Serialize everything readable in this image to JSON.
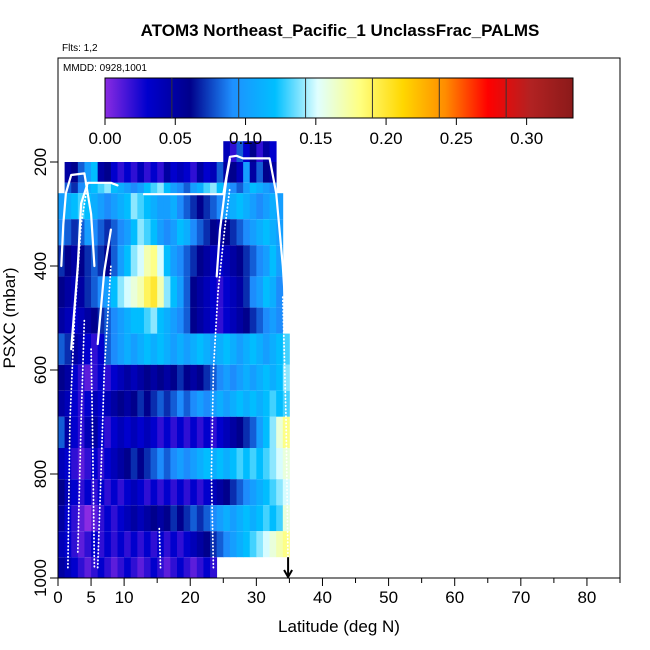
{
  "chart_data": {
    "type": "heatmap",
    "title": "ATOM3 Northeast_Pacific_1 UnclassFrac_PALMS",
    "flights_label": "Flts: 1,2",
    "date_label": "MMDD: 0928,1001",
    "xlabel": "Latitude (deg N)",
    "ylabel": "PSXC (mbar)",
    "xlim": [
      0,
      85
    ],
    "ylim": [
      1000,
      0
    ],
    "x_ticks": [
      0,
      5,
      10,
      20,
      30,
      40,
      50,
      60,
      70,
      80
    ],
    "y_ticks": [
      200,
      400,
      600,
      800,
      1000
    ],
    "colorbar": {
      "min": 0.0,
      "max": 0.333,
      "tick_values": [
        0.0,
        0.05,
        0.1,
        0.15,
        0.2,
        0.25,
        0.3
      ],
      "tick_labels": [
        "0.00",
        "0.05",
        "0.10",
        "0.15",
        "0.20",
        "0.25",
        "0.30"
      ],
      "colors": [
        "#8a2be2",
        "#0000cd",
        "#00008b",
        "#1e90ff",
        "#00bfff",
        "#e0ffff",
        "#ffff80",
        "#ffd700",
        "#ff8c00",
        "#ff0000",
        "#b22222",
        "#8b1a1a"
      ]
    },
    "layers": [
      {
        "p_top": 160,
        "p_bot": 200,
        "lat_start": 25,
        "lat_end": 33,
        "values": [
          0.04,
          0.02,
          0.08,
          0.03,
          0.06,
          0.02,
          0.05,
          0.03
        ]
      },
      {
        "p_top": 200,
        "p_bot": 240,
        "lat_start": 1,
        "lat_end": 33,
        "values": [
          0.05,
          0.06,
          0.08,
          0.1,
          0.12,
          0.05,
          0.06,
          0.03,
          0.02,
          0.03,
          0.02,
          0.04,
          0.02,
          0.03,
          0.02,
          0.05,
          0.03,
          0.04,
          0.03,
          0.02,
          0.05,
          0.03,
          0.04,
          0.08,
          0.05,
          0.06,
          0.04,
          0.1,
          0.05,
          0.08,
          0.06,
          0.05
        ]
      },
      {
        "p_top": 240,
        "p_bot": 260,
        "lat_start": 1,
        "lat_end": 33,
        "values": [
          0.08,
          0.07,
          0.09,
          0.11,
          0.12,
          0.13,
          0.14,
          0.12,
          0.11,
          0.1,
          0.09,
          0.1,
          0.12,
          0.13,
          0.14,
          0.12,
          0.1,
          0.09,
          0.08,
          0.1,
          0.11,
          0.13,
          0.14,
          0.12,
          0.1,
          0.09,
          0.08,
          0.1,
          0.12,
          0.11,
          0.1,
          0.09
        ]
      },
      {
        "p_top": 260,
        "p_bot": 310,
        "lat_start": 0,
        "lat_end": 34,
        "values": [
          0.1,
          0.11,
          0.12,
          0.13,
          0.12,
          0.11,
          0.1,
          0.09,
          0.1,
          0.11,
          0.12,
          0.14,
          0.13,
          0.12,
          0.11,
          0.1,
          0.1,
          0.11,
          0.09,
          0.08,
          0.07,
          0.06,
          0.07,
          0.08,
          0.09,
          0.1,
          0.11,
          0.12,
          0.11,
          0.1,
          0.09,
          0.1,
          0.11,
          0.1
        ]
      },
      {
        "p_top": 310,
        "p_bot": 360,
        "lat_start": 0,
        "lat_end": 34,
        "values": [
          0.09,
          0.08,
          0.07,
          0.08,
          0.1,
          0.09,
          0.08,
          0.07,
          0.08,
          0.09,
          0.1,
          0.12,
          0.14,
          0.13,
          0.12,
          0.1,
          0.09,
          0.1,
          0.12,
          0.11,
          0.09,
          0.08,
          0.07,
          0.06,
          0.05,
          0.06,
          0.07,
          0.08,
          0.09,
          0.1,
          0.11,
          0.12,
          0.11,
          0.1
        ]
      },
      {
        "p_top": 360,
        "p_bot": 420,
        "lat_start": 0,
        "lat_end": 34,
        "values": [
          0.07,
          0.06,
          0.05,
          0.06,
          0.07,
          0.08,
          0.07,
          0.06,
          0.08,
          0.1,
          0.12,
          0.14,
          0.15,
          0.17,
          0.18,
          0.15,
          0.12,
          0.1,
          0.09,
          0.08,
          0.07,
          0.06,
          0.05,
          0.04,
          0.03,
          0.04,
          0.05,
          0.06,
          0.07,
          0.08,
          0.09,
          0.1,
          0.12,
          0.1
        ]
      },
      {
        "p_top": 420,
        "p_bot": 480,
        "lat_start": 0,
        "lat_end": 34,
        "values": [
          0.06,
          0.05,
          0.04,
          0.05,
          0.07,
          0.08,
          0.09,
          0.1,
          0.12,
          0.14,
          0.15,
          0.16,
          0.17,
          0.19,
          0.2,
          0.17,
          0.14,
          0.12,
          0.1,
          0.08,
          0.06,
          0.05,
          0.04,
          0.03,
          0.02,
          0.03,
          0.04,
          0.05,
          0.07,
          0.09,
          0.1,
          0.12,
          0.11,
          0.09
        ]
      },
      {
        "p_top": 480,
        "p_bot": 530,
        "lat_start": 0,
        "lat_end": 34,
        "values": [
          0.05,
          0.04,
          0.03,
          0.04,
          0.05,
          0.06,
          0.07,
          0.08,
          0.09,
          0.1,
          0.11,
          0.12,
          0.12,
          0.13,
          0.14,
          0.12,
          0.11,
          0.1,
          0.09,
          0.08,
          0.06,
          0.05,
          0.04,
          0.03,
          0.02,
          0.03,
          0.04,
          0.05,
          0.06,
          0.07,
          0.08,
          0.09,
          0.1,
          0.09
        ]
      },
      {
        "p_top": 530,
        "p_bot": 590,
        "lat_start": 0,
        "lat_end": 35,
        "values": [
          0.08,
          0.07,
          0.05,
          0.04,
          0.03,
          0.02,
          0.03,
          0.08,
          0.09,
          0.1,
          0.11,
          0.1,
          0.11,
          0.12,
          0.11,
          0.12,
          0.11,
          0.1,
          0.11,
          0.1,
          0.11,
          0.12,
          0.11,
          0.1,
          0.11,
          0.12,
          0.11,
          0.1,
          0.11,
          0.12,
          0.11,
          0.1,
          0.11,
          0.12,
          0.13
        ]
      },
      {
        "p_top": 590,
        "p_bot": 640,
        "lat_start": 0,
        "lat_end": 35,
        "values": [
          0.06,
          0.05,
          0.03,
          0.02,
          0.01,
          0.02,
          0.03,
          0.02,
          0.03,
          0.04,
          0.05,
          0.04,
          0.05,
          0.06,
          0.05,
          0.06,
          0.05,
          0.06,
          0.07,
          0.06,
          0.05,
          0.06,
          0.07,
          0.08,
          0.09,
          0.1,
          0.09,
          0.1,
          0.11,
          0.1,
          0.11,
          0.12,
          0.11,
          0.12,
          0.14
        ]
      },
      {
        "p_top": 640,
        "p_bot": 690,
        "lat_start": 0,
        "lat_end": 35,
        "values": [
          0.05,
          0.04,
          0.03,
          0.02,
          0.03,
          0.04,
          0.03,
          0.04,
          0.05,
          0.06,
          0.05,
          0.06,
          0.07,
          0.06,
          0.07,
          0.08,
          0.07,
          0.08,
          0.09,
          0.08,
          0.09,
          0.1,
          0.09,
          0.1,
          0.11,
          0.1,
          0.11,
          0.12,
          0.11,
          0.12,
          0.11,
          0.12,
          0.13,
          0.12,
          0.13
        ]
      },
      {
        "p_top": 690,
        "p_bot": 750,
        "lat_start": 0,
        "lat_end": 35,
        "values": [
          0.08,
          0.05,
          0.03,
          0.02,
          0.04,
          0.05,
          0.03,
          0.02,
          0.03,
          0.04,
          0.03,
          0.04,
          0.03,
          0.04,
          0.03,
          0.02,
          0.03,
          0.02,
          0.03,
          0.02,
          0.03,
          0.02,
          0.03,
          0.02,
          0.03,
          0.04,
          0.05,
          0.06,
          0.07,
          0.08,
          0.1,
          0.12,
          0.14,
          0.16,
          0.18
        ]
      },
      {
        "p_top": 750,
        "p_bot": 810,
        "lat_start": 0,
        "lat_end": 35,
        "values": [
          0.04,
          0.03,
          0.02,
          0.01,
          0.02,
          0.03,
          0.02,
          0.03,
          0.04,
          0.05,
          0.06,
          0.07,
          0.06,
          0.07,
          0.08,
          0.09,
          0.08,
          0.09,
          0.1,
          0.09,
          0.1,
          0.11,
          0.12,
          0.11,
          0.12,
          0.11,
          0.12,
          0.13,
          0.12,
          0.13,
          0.12,
          0.13,
          0.14,
          0.15,
          0.16
        ]
      },
      {
        "p_top": 810,
        "p_bot": 860,
        "lat_start": 0,
        "lat_end": 35,
        "values": [
          0.06,
          0.04,
          0.03,
          0.02,
          0.03,
          0.02,
          0.03,
          0.02,
          0.03,
          0.02,
          0.03,
          0.04,
          0.03,
          0.02,
          0.03,
          0.02,
          0.03,
          0.02,
          0.03,
          0.02,
          0.03,
          0.02,
          0.03,
          0.04,
          0.05,
          0.06,
          0.07,
          0.08,
          0.09,
          0.1,
          0.11,
          0.12,
          0.13,
          0.14,
          0.15
        ]
      },
      {
        "p_top": 860,
        "p_bot": 910,
        "lat_start": 0,
        "lat_end": 35,
        "values": [
          0.05,
          0.03,
          0.02,
          0.01,
          0.0,
          0.01,
          0.02,
          0.03,
          0.02,
          0.03,
          0.04,
          0.05,
          0.04,
          0.05,
          0.06,
          0.05,
          0.06,
          0.07,
          0.06,
          0.07,
          0.08,
          0.07,
          0.08,
          0.09,
          0.1,
          0.11,
          0.1,
          0.11,
          0.12,
          0.11,
          0.12,
          0.13,
          0.12,
          0.13,
          0.16
        ]
      },
      {
        "p_top": 910,
        "p_bot": 960,
        "lat_start": 0,
        "lat_end": 35,
        "values": [
          0.04,
          0.03,
          0.02,
          0.01,
          0.02,
          0.03,
          0.02,
          0.03,
          0.02,
          0.03,
          0.02,
          0.03,
          0.02,
          0.03,
          0.02,
          0.03,
          0.02,
          0.03,
          0.02,
          0.03,
          0.04,
          0.05,
          0.06,
          0.07,
          0.08,
          0.09,
          0.1,
          0.11,
          0.12,
          0.13,
          0.14,
          0.15,
          0.16,
          0.17,
          0.18
        ]
      },
      {
        "p_top": 960,
        "p_bot": 1000,
        "lat_start": 0,
        "lat_end": 24,
        "values": [
          0.05,
          0.04,
          0.03,
          0.02,
          0.01,
          0.02,
          0.03,
          0.02,
          0.01,
          0.02,
          0.03,
          0.02,
          0.01,
          0.02,
          0.03,
          0.02,
          0.01,
          0.02,
          0.03,
          0.02,
          0.01,
          0.02,
          0.03,
          0.02
        ]
      }
    ],
    "flight_tracks": [
      {
        "style": "solid",
        "points": [
          [
            0.5,
            400
          ],
          [
            0.8,
            320
          ],
          [
            1.2,
            260
          ],
          [
            2,
            225
          ],
          [
            4,
            222
          ],
          [
            5,
            300
          ],
          [
            5.5,
            400
          ]
        ]
      },
      {
        "style": "solid",
        "points": [
          [
            2,
            560
          ],
          [
            3,
            400
          ],
          [
            3.5,
            280
          ],
          [
            4.5,
            240
          ],
          [
            8,
            240
          ],
          [
            9,
            245
          ]
        ]
      },
      {
        "style": "solid",
        "points": [
          [
            6,
            550
          ],
          [
            7,
            410
          ],
          [
            8,
            330
          ]
        ]
      },
      {
        "style": "solid",
        "points": [
          [
            13,
            262
          ],
          [
            25,
            262
          ],
          [
            26,
            190
          ],
          [
            27,
            188
          ],
          [
            28,
            193
          ],
          [
            32,
            193
          ],
          [
            33,
            260
          ],
          [
            34,
            400
          ],
          [
            34.5,
            500
          ]
        ]
      },
      {
        "style": "solid",
        "points": [
          [
            24,
            420
          ],
          [
            24.5,
            330
          ],
          [
            25.5,
            230
          ],
          [
            26,
            195
          ]
        ]
      },
      {
        "style": "dotted",
        "points": [
          [
            1.5,
            980
          ],
          [
            1.8,
            700
          ],
          [
            2.5,
            500
          ],
          [
            3.5,
            320
          ],
          [
            4.5,
            240
          ]
        ]
      },
      {
        "style": "dotted",
        "points": [
          [
            3,
            950
          ],
          [
            3.5,
            700
          ],
          [
            4,
            500
          ]
        ]
      },
      {
        "style": "dotted",
        "points": [
          [
            5,
            560
          ],
          [
            5.2,
            700
          ],
          [
            5.5,
            980
          ]
        ]
      },
      {
        "style": "dotted",
        "points": [
          [
            6,
            980
          ],
          [
            6.5,
            800
          ],
          [
            7,
            600
          ],
          [
            8,
            400
          ]
        ]
      },
      {
        "style": "dotted",
        "points": [
          [
            15.5,
            980
          ],
          [
            15.3,
            900
          ]
        ]
      },
      {
        "style": "dotted",
        "points": [
          [
            23.5,
            980
          ],
          [
            23.2,
            800
          ],
          [
            23.5,
            600
          ],
          [
            24.2,
            450
          ],
          [
            25.2,
            330
          ],
          [
            26,
            250
          ]
        ]
      },
      {
        "style": "dotted",
        "points": [
          [
            34,
            460
          ],
          [
            34.5,
            700
          ],
          [
            34.8,
            980
          ]
        ]
      }
    ],
    "arrow_lat": 34.8
  }
}
